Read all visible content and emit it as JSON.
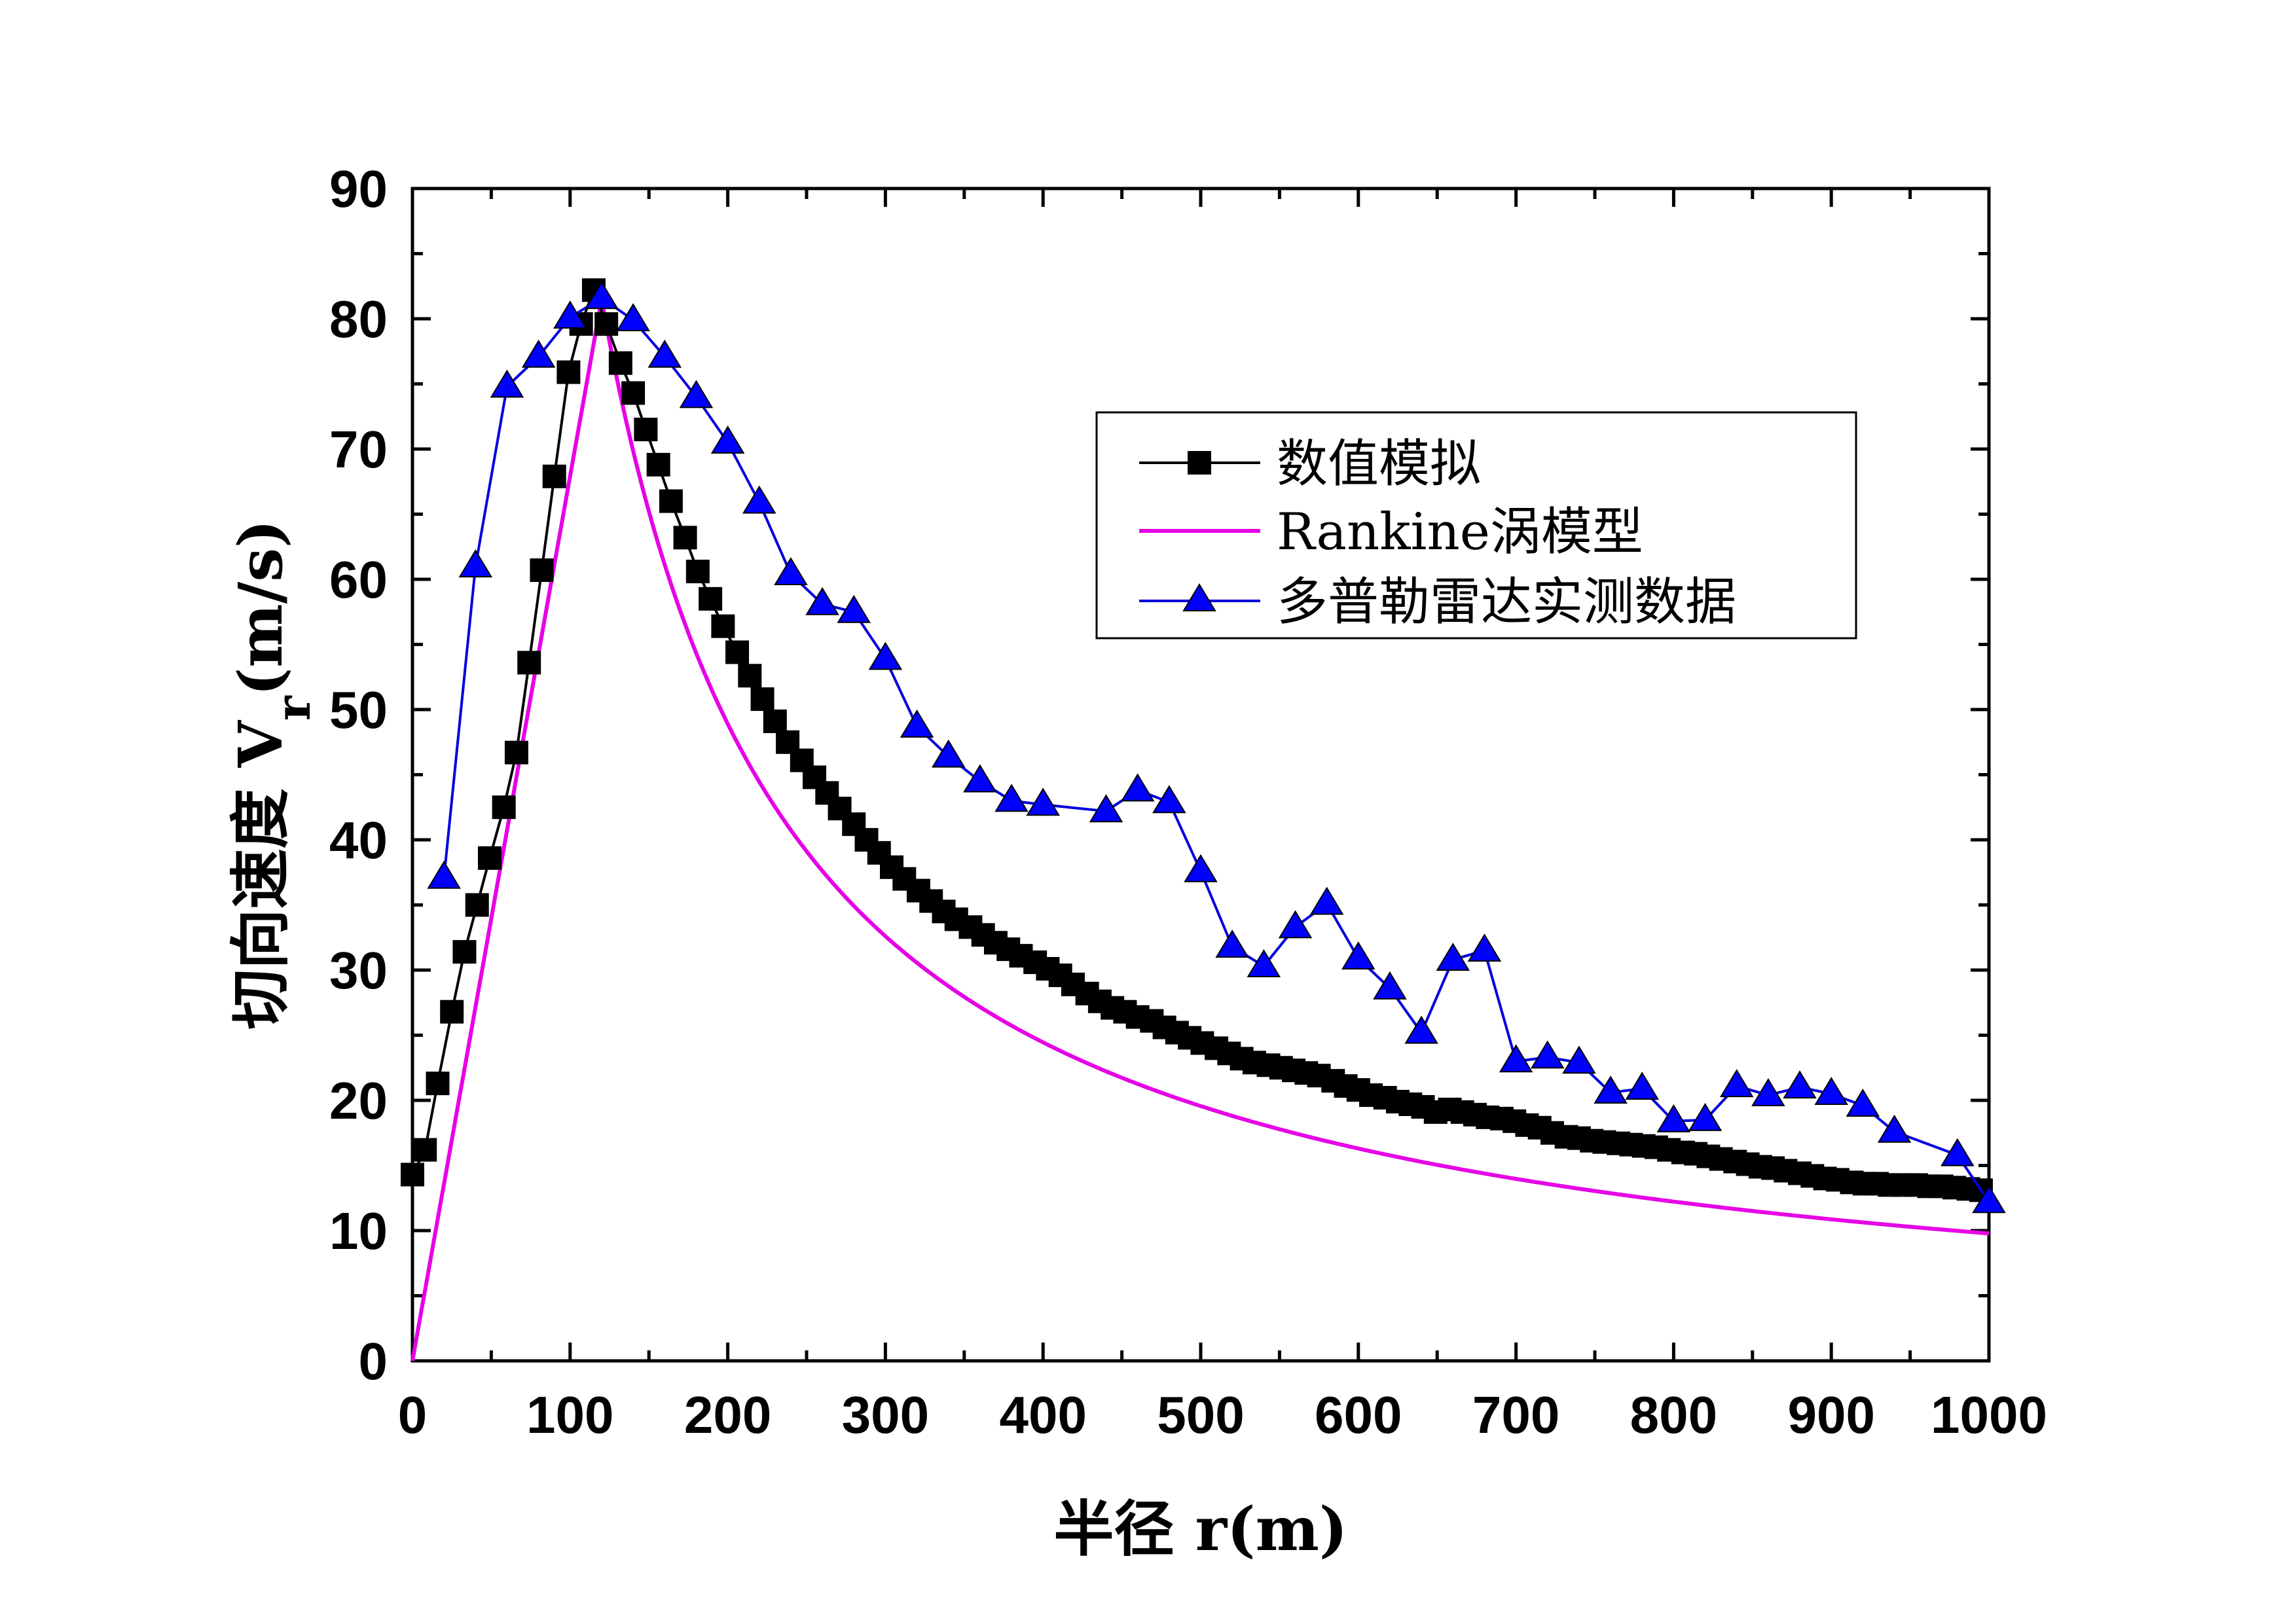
{
  "colors": {
    "numerical": "#000000",
    "rankine": "#e600e6",
    "radar": "#0000dd",
    "radar_marker": "#0000ff"
  },
  "chart_data": {
    "type": "line",
    "title": "",
    "xlabel": "半径 r(m)",
    "ylabel_main": "切向速度 V",
    "ylabel_sub": "r",
    "ylabel_tail": "(m/s)",
    "xlim": [
      0,
      1000
    ],
    "ylim": [
      0,
      90
    ],
    "xticks": [
      "0",
      "100",
      "200",
      "300",
      "400",
      "500",
      "600",
      "700",
      "800",
      "900",
      "1000"
    ],
    "yticks": [
      "0",
      "10",
      "20",
      "30",
      "40",
      "50",
      "60",
      "70",
      "80",
      "90"
    ],
    "grid": false,
    "legend_position": "upper-right",
    "series": [
      {
        "name": "数值模拟",
        "marker": "square",
        "points": [
          [
            0,
            14.3
          ],
          [
            8,
            16.2
          ],
          [
            16,
            21.3
          ],
          [
            25,
            26.8
          ],
          [
            33,
            31.4
          ],
          [
            41,
            35
          ],
          [
            49,
            38.6
          ],
          [
            58,
            42.5
          ],
          [
            66,
            46.7
          ],
          [
            74,
            53.6
          ],
          [
            82,
            60.7
          ],
          [
            90,
            67.9
          ],
          [
            99,
            75.9
          ],
          [
            107,
            79.6
          ],
          [
            115,
            82.2
          ],
          [
            123,
            79.6
          ],
          [
            132,
            76.6
          ],
          [
            140,
            74.3
          ],
          [
            148,
            71.5
          ],
          [
            156,
            68.8
          ],
          [
            164,
            66.0
          ],
          [
            173,
            63.2
          ],
          [
            181,
            60.6
          ],
          [
            189,
            58.5
          ],
          [
            197,
            56.4
          ],
          [
            206,
            54.4
          ],
          [
            214,
            52.6
          ],
          [
            222,
            50.8
          ],
          [
            230,
            49.1
          ],
          [
            238,
            47.5
          ],
          [
            247,
            46.1
          ],
          [
            255,
            44.8
          ],
          [
            263,
            43.6
          ],
          [
            271,
            42.4
          ],
          [
            280,
            41.2
          ],
          [
            288,
            40.0
          ],
          [
            296,
            39.0
          ],
          [
            304,
            37.9
          ],
          [
            312,
            37.0
          ],
          [
            321,
            36.1
          ],
          [
            329,
            35.3
          ],
          [
            337,
            34.5
          ],
          [
            345,
            33.9
          ],
          [
            354,
            33.3
          ],
          [
            362,
            32.7
          ],
          [
            370,
            32.1
          ],
          [
            378,
            31.6
          ],
          [
            386,
            31.1
          ],
          [
            395,
            30.6
          ],
          [
            403,
            30.1
          ],
          [
            411,
            29.6
          ],
          [
            419,
            28.9
          ],
          [
            428,
            28.2
          ],
          [
            436,
            27.6
          ],
          [
            444,
            27.1
          ],
          [
            452,
            26.8
          ],
          [
            460,
            26.4
          ],
          [
            469,
            26.1
          ],
          [
            477,
            25.6
          ],
          [
            485,
            25.2
          ],
          [
            493,
            24.8
          ],
          [
            501,
            24.4
          ],
          [
            510,
            24.0
          ],
          [
            518,
            23.6
          ],
          [
            526,
            23.2
          ],
          [
            534,
            22.9
          ],
          [
            543,
            22.7
          ],
          [
            551,
            22.5
          ],
          [
            559,
            22.3
          ],
          [
            567,
            22.1
          ],
          [
            575,
            21.9
          ],
          [
            584,
            21.5
          ],
          [
            592,
            21.1
          ],
          [
            600,
            20.8
          ],
          [
            608,
            20.4
          ],
          [
            617,
            20.2
          ],
          [
            625,
            19.9
          ],
          [
            633,
            19.7
          ],
          [
            641,
            19.5
          ],
          [
            649,
            19.1
          ],
          [
            658,
            19.3
          ],
          [
            666,
            19.1
          ],
          [
            674,
            18.9
          ],
          [
            682,
            18.7
          ],
          [
            691,
            18.6
          ],
          [
            699,
            18.4
          ],
          [
            707,
            18.1
          ],
          [
            715,
            17.9
          ],
          [
            723,
            17.5
          ],
          [
            732,
            17.2
          ],
          [
            740,
            17.1
          ],
          [
            748,
            16.9
          ],
          [
            756,
            16.8
          ],
          [
            765,
            16.7
          ],
          [
            773,
            16.6
          ],
          [
            781,
            16.5
          ],
          [
            789,
            16.4
          ],
          [
            797,
            16.2
          ],
          [
            806,
            16.0
          ],
          [
            814,
            15.9
          ],
          [
            822,
            15.7
          ],
          [
            830,
            15.5
          ],
          [
            839,
            15.3
          ],
          [
            847,
            15.1
          ],
          [
            855,
            14.9
          ],
          [
            863,
            14.8
          ],
          [
            871,
            14.6
          ],
          [
            880,
            14.4
          ],
          [
            888,
            14.2
          ],
          [
            896,
            14.0
          ],
          [
            904,
            13.9
          ],
          [
            913,
            13.7
          ],
          [
            921,
            13.6
          ],
          [
            929,
            13.6
          ],
          [
            937,
            13.5
          ],
          [
            945,
            13.5
          ],
          [
            954,
            13.5
          ],
          [
            962,
            13.4
          ],
          [
            970,
            13.4
          ],
          [
            978,
            13.3
          ],
          [
            987,
            13.2
          ],
          [
            995,
            13.1
          ]
        ]
      },
      {
        "name": "Rankine涡模型",
        "marker": "none",
        "rmax": 120,
        "vmax": 81.5,
        "x_end": 1000
      },
      {
        "name": "多普勒雷达实测数据",
        "marker": "triangle",
        "points": [
          [
            20,
            37.1
          ],
          [
            40,
            61
          ],
          [
            60,
            74.8
          ],
          [
            80,
            77.1
          ],
          [
            100,
            80.1
          ],
          [
            120,
            81.6
          ],
          [
            140,
            79.9
          ],
          [
            160,
            77.1
          ],
          [
            180,
            74
          ],
          [
            200,
            70.5
          ],
          [
            220,
            65.9
          ],
          [
            240,
            60.4
          ],
          [
            260,
            58.1
          ],
          [
            280,
            57.5
          ],
          [
            300,
            53.9
          ],
          [
            320,
            48.7
          ],
          [
            340,
            46.4
          ],
          [
            360,
            44.5
          ],
          [
            380,
            43
          ],
          [
            400,
            42.7
          ],
          [
            440,
            42.2
          ],
          [
            460,
            43.8
          ],
          [
            480,
            42.9
          ],
          [
            500,
            37.6
          ],
          [
            520,
            31.8
          ],
          [
            540,
            30.3
          ],
          [
            560,
            33.3
          ],
          [
            580,
            35.1
          ],
          [
            600,
            30.9
          ],
          [
            620,
            28.6
          ],
          [
            640,
            25.2
          ],
          [
            660,
            30.8
          ],
          [
            680,
            31.5
          ],
          [
            700,
            23
          ],
          [
            720,
            23.3
          ],
          [
            740,
            22.9
          ],
          [
            760,
            20.6
          ],
          [
            780,
            20.9
          ],
          [
            800,
            18.4
          ],
          [
            820,
            18.5
          ],
          [
            840,
            21.1
          ],
          [
            860,
            20.4
          ],
          [
            880,
            21
          ],
          [
            900,
            20.5
          ],
          [
            920,
            19.6
          ],
          [
            940,
            17.6
          ],
          [
            980,
            15.8
          ],
          [
            1000,
            12.2
          ]
        ]
      }
    ]
  }
}
